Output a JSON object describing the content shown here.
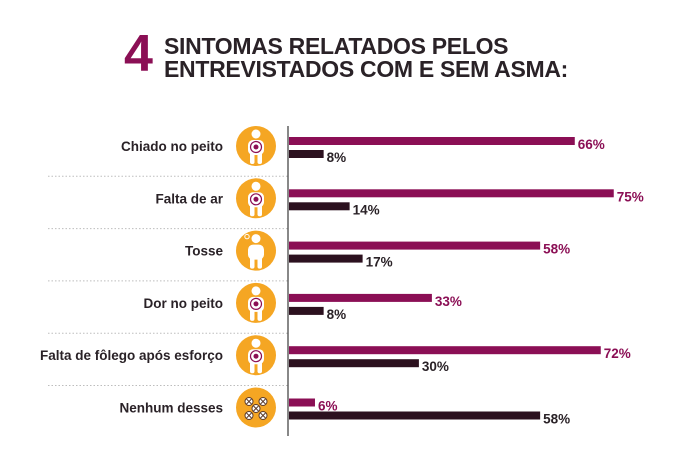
{
  "header": {
    "number": "4",
    "title_line1": "SINTOMAS RELATADOS PELOS",
    "title_line2": "ENTREVISTADOS COM E SEM ASMA:"
  },
  "colors": {
    "accent": "#8b0f55",
    "series_with_asthma": "#8b0f55",
    "series_without_asthma": "#2c111f",
    "icon_fill": "#f5a623",
    "text": "#2a2227",
    "axis": "#555555",
    "separator": "#bdbdbd"
  },
  "chart_data": {
    "type": "bar",
    "orientation": "horizontal",
    "categories": [
      "Chiado no peito",
      "Falta de ar",
      "Tosse",
      "Dor no peito",
      "Falta de fôlego após esforço",
      "Nenhum desses"
    ],
    "icons": [
      "person-chest-target-icon",
      "person-chest-target-icon",
      "person-coughing-icon",
      "person-chest-target-icon",
      "person-chest-target-icon",
      "crossed-circles-icon"
    ],
    "series": [
      {
        "values": [
          66,
          75,
          58,
          33,
          72,
          6
        ],
        "labels": [
          "66%",
          "75%",
          "58%",
          "33%",
          "72%",
          "6%"
        ]
      },
      {
        "values": [
          8,
          14,
          17,
          8,
          30,
          58
        ],
        "labels": [
          "8%",
          "14%",
          "17%",
          "8%",
          "30%",
          "58%"
        ]
      }
    ],
    "xlim": [
      0,
      100
    ],
    "value_format": "percent",
    "grid": false,
    "legend": "none"
  }
}
